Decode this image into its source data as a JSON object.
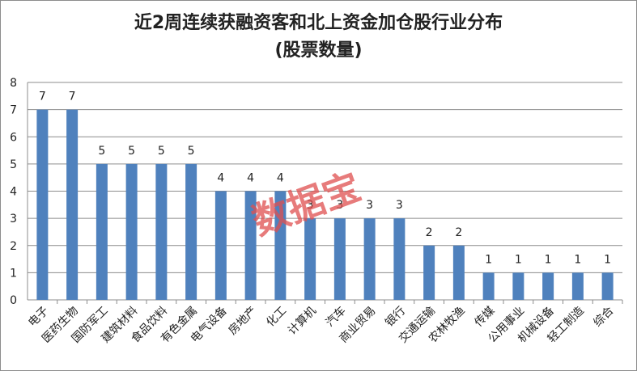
{
  "chart_data": {
    "type": "bar",
    "title": "近2周连续获融资客和北上资金加仓股行业分布",
    "subtitle": "(股票数量)",
    "categories": [
      "电子",
      "医药生物",
      "国防军工",
      "建筑材料",
      "食品饮料",
      "有色金属",
      "电气设备",
      "房地产",
      "化工",
      "计算机",
      "汽车",
      "商业贸易",
      "银行",
      "交通运输",
      "农林牧渔",
      "传媒",
      "公用事业",
      "机械设备",
      "轻工制造",
      "综合"
    ],
    "values": [
      7,
      7,
      5,
      5,
      5,
      5,
      4,
      4,
      4,
      3,
      3,
      3,
      3,
      2,
      2,
      1,
      1,
      1,
      1,
      1
    ],
    "ylim": [
      0,
      8
    ],
    "yticks": [
      0,
      1,
      2,
      3,
      4,
      5,
      6,
      7,
      8
    ],
    "grid": true,
    "bar_color": "#4f81bd",
    "gridline_color": "#8c8c8c"
  },
  "watermark": "数据宝"
}
